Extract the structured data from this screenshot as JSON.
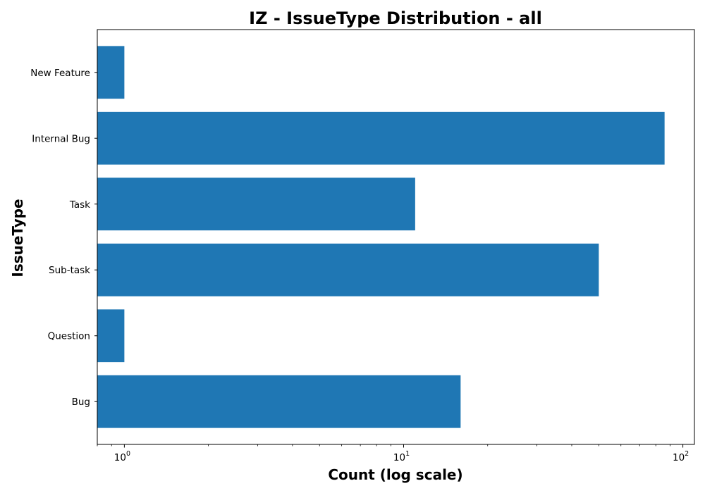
{
  "chart_data": {
    "type": "bar",
    "orientation": "horizontal",
    "title": "IZ - IssueType Distribution - all",
    "xlabel": "Count (log scale)",
    "ylabel": "IssueType",
    "xscale": "log",
    "xlim": [
      0.8,
      110
    ],
    "categories": [
      "Bug",
      "Question",
      "Sub-task",
      "Task",
      "Internal Bug",
      "New Feature"
    ],
    "values": [
      16,
      1,
      50,
      11,
      86,
      1
    ],
    "x_ticks": [
      {
        "value": 1,
        "base": "10",
        "exp": "0"
      },
      {
        "value": 10,
        "base": "10",
        "exp": "1"
      },
      {
        "value": 100,
        "base": "10",
        "exp": "2"
      }
    ],
    "bar_color": "#1f77b4",
    "grid": false
  }
}
